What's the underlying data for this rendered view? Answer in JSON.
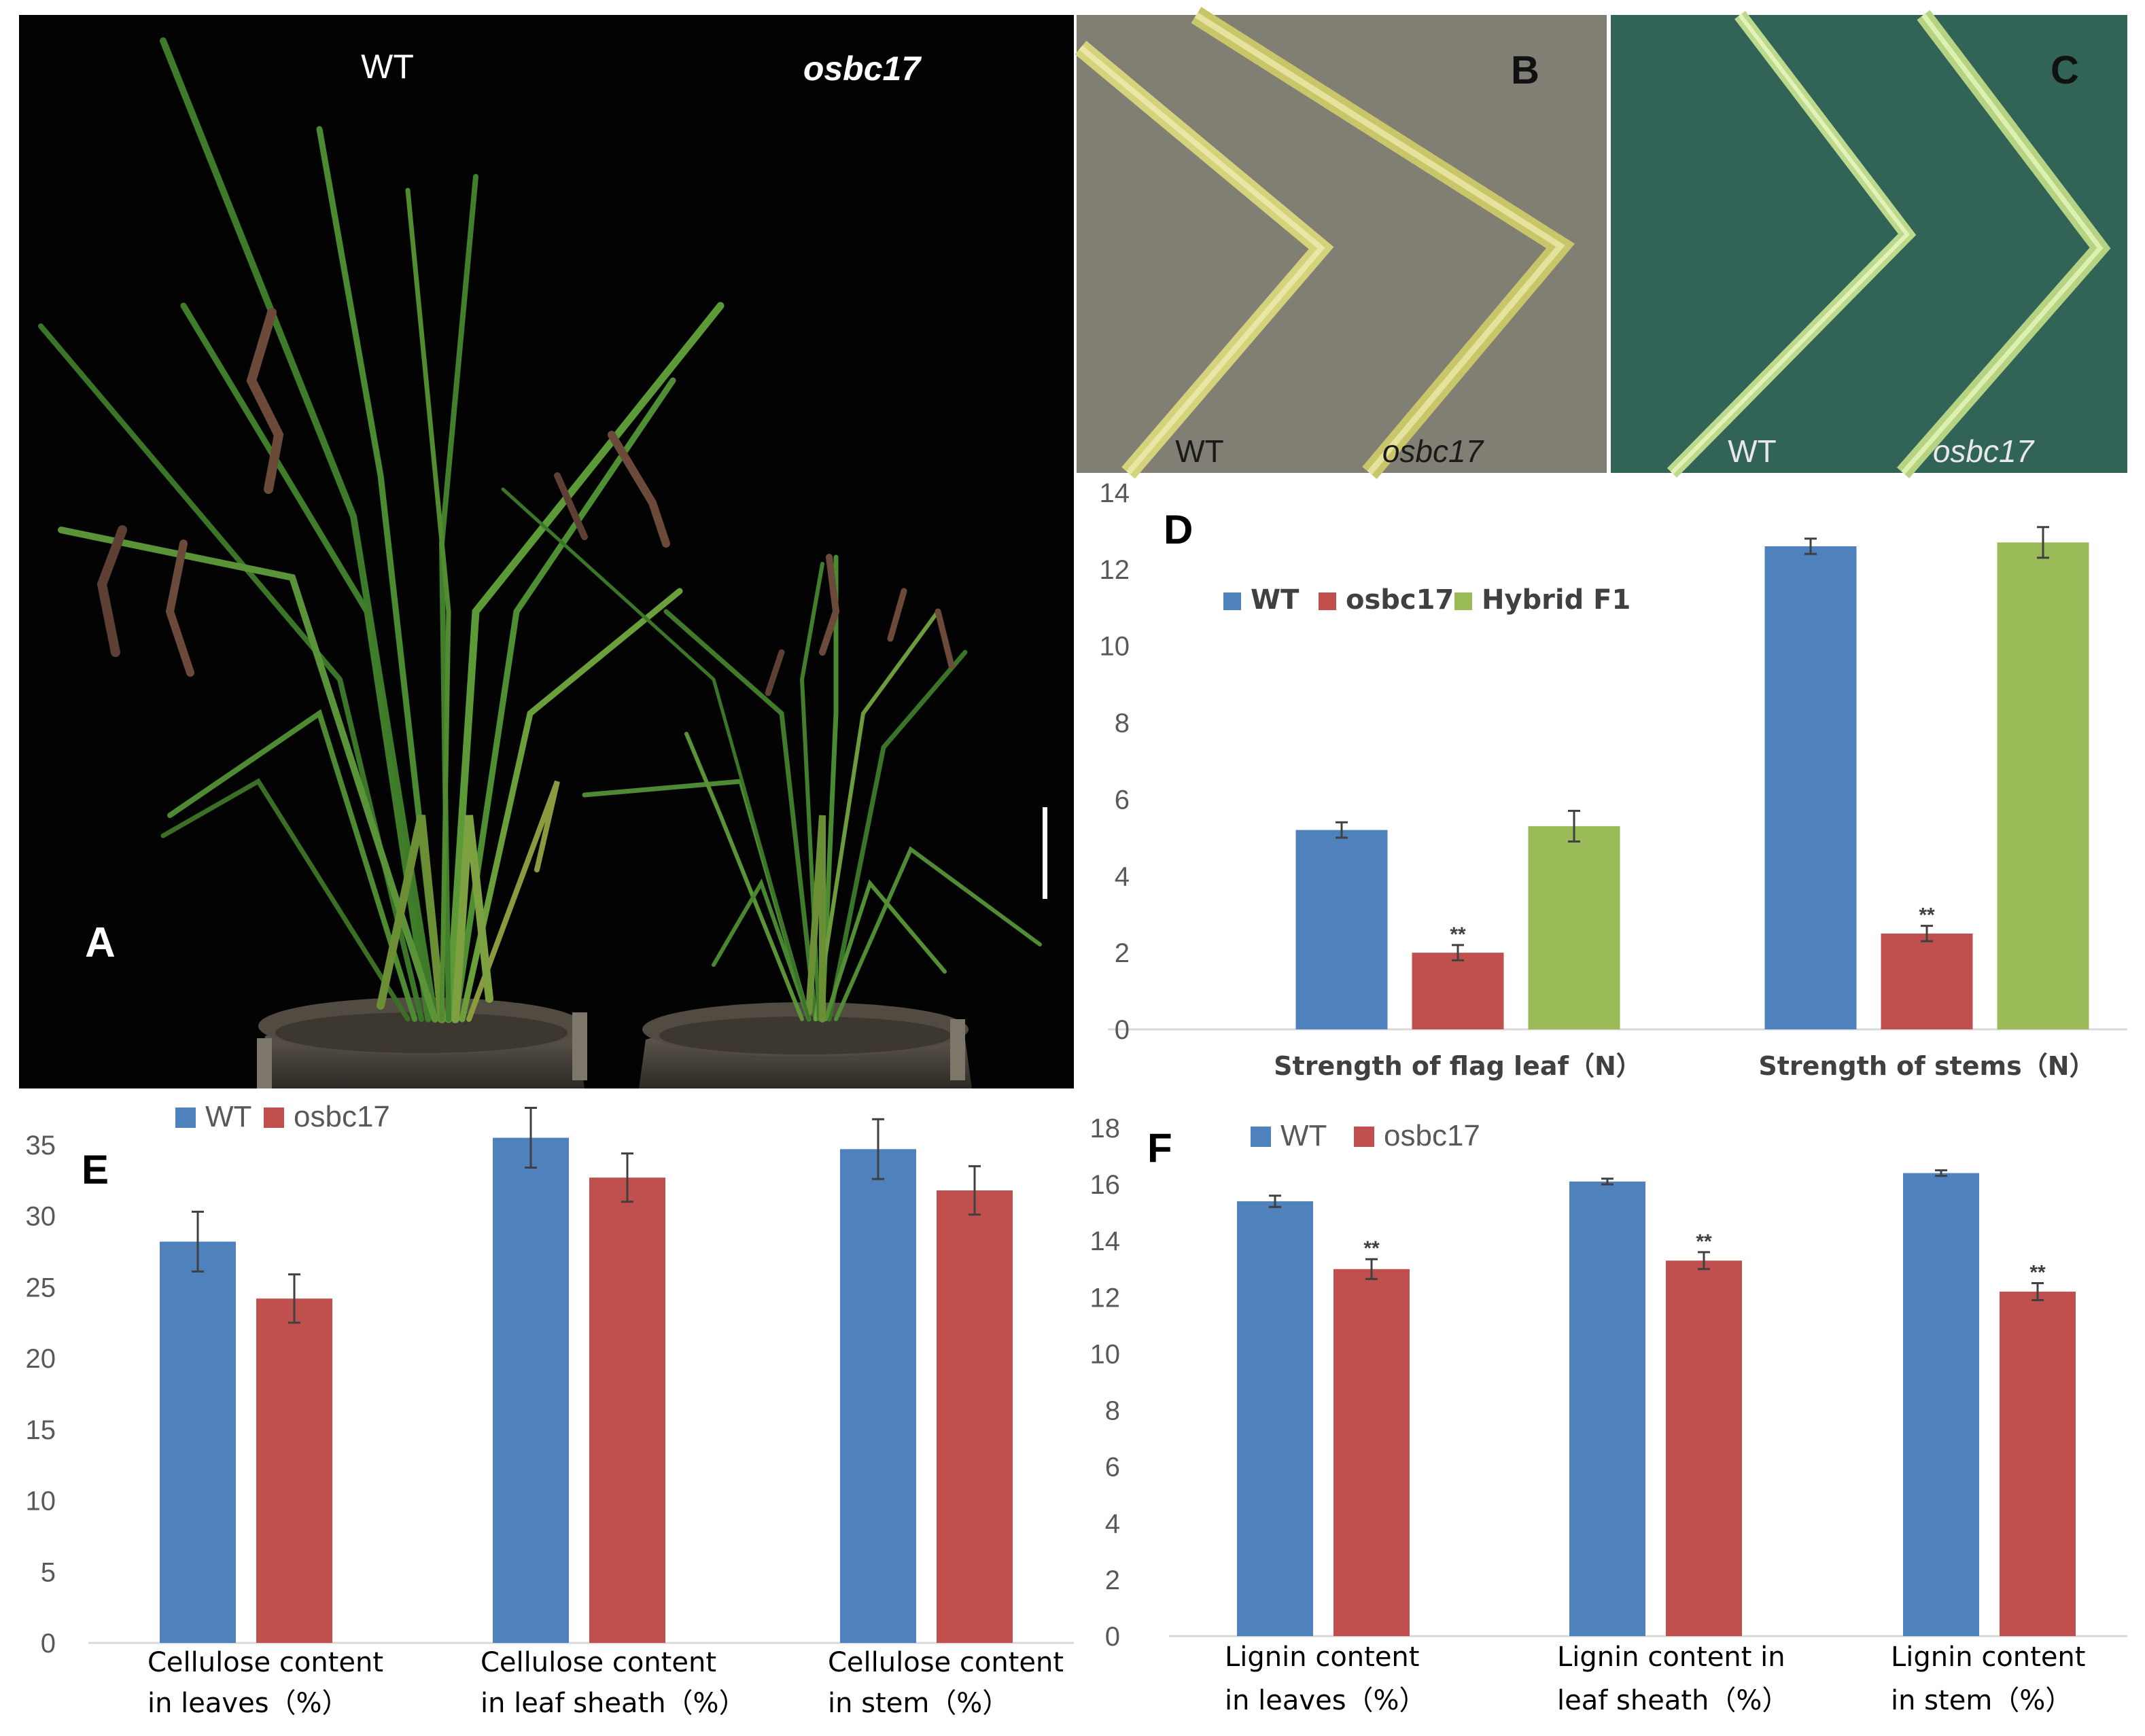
{
  "figure": {
    "photo_a": {
      "label": "A",
      "left_label": "WT",
      "right_label": "osbc17"
    },
    "photo_b": {
      "label": "B",
      "left_label": "WT",
      "right_label": "osbc17"
    },
    "photo_c": {
      "label": "C",
      "left_label": "WT",
      "right_label": "osbc17"
    }
  },
  "colors": {
    "wt": "#4F81BD",
    "mutant": "#C0504D",
    "hybrid": "#9BBB59",
    "axis": "#D9D9D9"
  },
  "chart_data": [
    {
      "panel": "D",
      "type": "bar",
      "categories": [
        "Strength of flag leaf（N）",
        "Strength of stems（N）"
      ],
      "series": [
        {
          "name": "WT",
          "values": [
            5.2,
            12.6
          ],
          "errors": [
            0.2,
            0.2
          ],
          "sig": [
            "",
            ""
          ]
        },
        {
          "name": "osbc17",
          "values": [
            2.0,
            2.5
          ],
          "errors": [
            0.2,
            0.2
          ],
          "sig": [
            "**",
            "**"
          ]
        },
        {
          "name": "Hybrid F1",
          "values": [
            5.3,
            12.7
          ],
          "errors": [
            0.4,
            0.4
          ],
          "sig": [
            "",
            ""
          ]
        }
      ],
      "ylim": [
        0,
        14
      ],
      "yticks": [
        0,
        2,
        4,
        6,
        8,
        10,
        12,
        14
      ],
      "legend": "top-left",
      "grid": false
    },
    {
      "panel": "E",
      "type": "bar",
      "categories": [
        [
          "Cellulose content",
          "in leaves（%）"
        ],
        [
          "Cellulose content",
          "in leaf sheath（%）"
        ],
        [
          "Cellulose content",
          "in stem（%）"
        ]
      ],
      "series": [
        {
          "name": "WT",
          "values": [
            28.2,
            35.5,
            34.7
          ],
          "errors": [
            2.1,
            2.1,
            2.1
          ],
          "sig": [
            "",
            "",
            ""
          ]
        },
        {
          "name": "osbc17",
          "values": [
            24.2,
            32.7,
            31.8
          ],
          "errors": [
            1.7,
            1.7,
            1.7
          ],
          "sig": [
            "",
            "",
            ""
          ]
        }
      ],
      "ylim": [
        0,
        35
      ],
      "yticks": [
        0,
        5,
        10,
        15,
        20,
        25,
        30,
        35
      ],
      "legend": "top-left",
      "grid": false
    },
    {
      "panel": "F",
      "type": "bar",
      "categories": [
        [
          "Lignin content",
          "in leaves（%）"
        ],
        [
          "Lignin content in",
          "leaf sheath（%）"
        ],
        [
          "Lignin content",
          "in stem（%）"
        ]
      ],
      "series": [
        {
          "name": "WT",
          "values": [
            15.4,
            16.1,
            16.4
          ],
          "errors": [
            0.2,
            0.1,
            0.1
          ],
          "sig": [
            "",
            "",
            ""
          ]
        },
        {
          "name": "osbc17",
          "values": [
            13.0,
            13.3,
            12.2
          ],
          "errors": [
            0.35,
            0.3,
            0.3
          ],
          "sig": [
            "**",
            "**",
            "**"
          ]
        }
      ],
      "ylim": [
        0,
        18
      ],
      "yticks": [
        0,
        2,
        4,
        6,
        8,
        10,
        12,
        14,
        16,
        18
      ],
      "legend": "top-left",
      "grid": false
    }
  ]
}
